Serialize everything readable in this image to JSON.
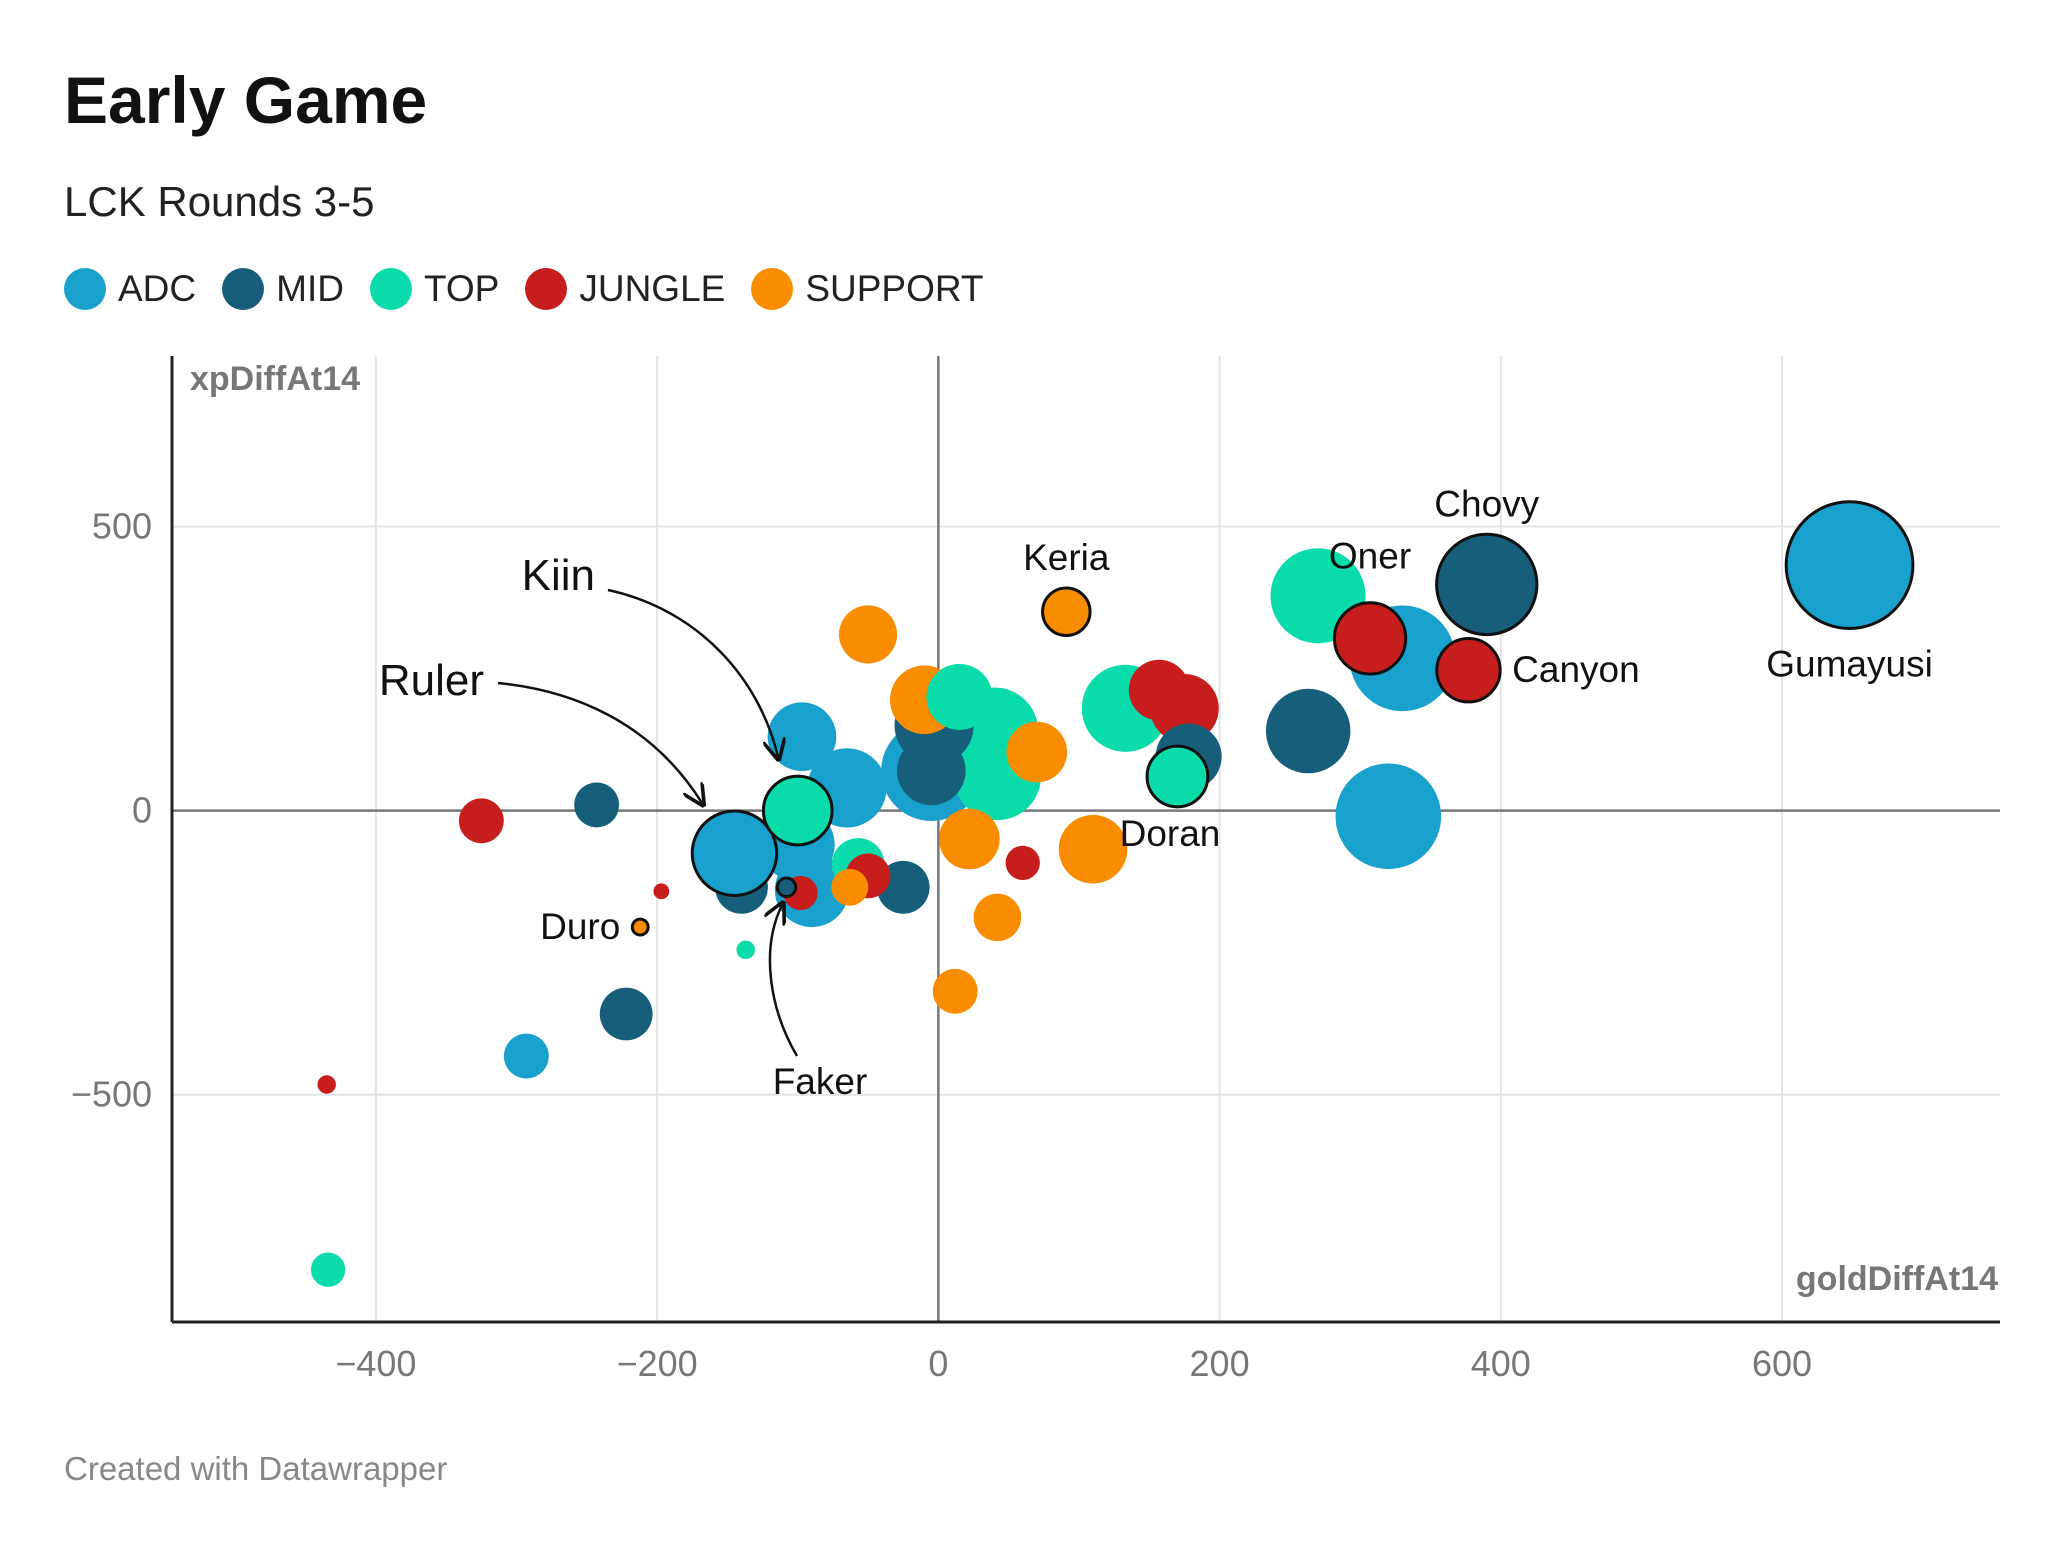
{
  "header": {
    "title": "Early Game",
    "subtitle": "LCK Rounds 3-5"
  },
  "legend": [
    {
      "label": "ADC",
      "color": "#18a1cd"
    },
    {
      "label": "MID",
      "color": "#175e7a"
    },
    {
      "label": "TOP",
      "color": "#09dcaa"
    },
    {
      "label": "JUNGLE",
      "color": "#c71e1d"
    },
    {
      "label": "SUPPORT",
      "color": "#fa8c00"
    }
  ],
  "footer": {
    "credit": "Created with Datawrapper"
  },
  "chart_data": {
    "type": "scatter",
    "xlabel": "goldDiffAt14",
    "ylabel": "xpDiffAt14",
    "xlim": [
      -545,
      755
    ],
    "ylim": [
      -900,
      800
    ],
    "xticks": [
      -400,
      -200,
      0,
      200,
      400,
      600
    ],
    "yticks": [
      500,
      0,
      -500
    ],
    "xtick_labels": [
      "−400",
      "−200",
      "0",
      "200",
      "400",
      "600"
    ],
    "ytick_labels": [
      "500",
      "0",
      "−500"
    ],
    "grid": true,
    "series": [
      {
        "name": "ADC",
        "color": "#18a1cd",
        "points": [
          {
            "x": 648,
            "y": 432,
            "size": 48,
            "label": "Gumayusi",
            "outline": true
          },
          {
            "x": 330,
            "y": 268,
            "size": 40
          },
          {
            "x": 320,
            "y": -10,
            "size": 40
          },
          {
            "x": -5,
            "y": 70,
            "size": 38
          },
          {
            "x": -65,
            "y": 40,
            "size": 30
          },
          {
            "x": -145,
            "y": -75,
            "size": 32,
            "label": "Ruler",
            "outline": true
          },
          {
            "x": -100,
            "y": -60,
            "size": 28
          },
          {
            "x": -90,
            "y": -140,
            "size": 28
          },
          {
            "x": -97,
            "y": 130,
            "size": 26
          },
          {
            "x": -293,
            "y": -432,
            "size": 17
          }
        ]
      },
      {
        "name": "MID",
        "color": "#175e7a",
        "points": [
          {
            "x": 390,
            "y": 398,
            "size": 38,
            "label": "Chovy",
            "outline": true
          },
          {
            "x": 263,
            "y": 140,
            "size": 32
          },
          {
            "x": 178,
            "y": 95,
            "size": 25
          },
          {
            "x": -3,
            "y": 150,
            "size": 30
          },
          {
            "x": -5,
            "y": 70,
            "size": 26
          },
          {
            "x": -25,
            "y": -135,
            "size": 20
          },
          {
            "x": -140,
            "y": -135,
            "size": 20
          },
          {
            "x": -108,
            "y": -135,
            "size": 7,
            "label": "Faker",
            "outline": true
          },
          {
            "x": -243,
            "y": 10,
            "size": 17
          },
          {
            "x": -222,
            "y": -358,
            "size": 20
          }
        ]
      },
      {
        "name": "TOP",
        "color": "#09dcaa",
        "points": [
          {
            "x": 270,
            "y": 378,
            "size": 36
          },
          {
            "x": 133,
            "y": 180,
            "size": 33
          },
          {
            "x": 40,
            "y": 140,
            "size": 33
          },
          {
            "x": 42,
            "y": 60,
            "size": 33
          },
          {
            "x": 15,
            "y": 200,
            "size": 25
          },
          {
            "x": 170,
            "y": 60,
            "size": 23,
            "label": "Doran",
            "outline": true
          },
          {
            "x": -100,
            "y": 0,
            "size": 26,
            "label": "Kiin",
            "outline": true
          },
          {
            "x": -57,
            "y": -95,
            "size": 20
          },
          {
            "x": -137,
            "y": -245,
            "size": 7
          },
          {
            "x": -434,
            "y": -808,
            "size": 13
          }
        ]
      },
      {
        "name": "JUNGLE",
        "color": "#c71e1d",
        "points": [
          {
            "x": 307,
            "y": 303,
            "size": 27,
            "label": "Oner",
            "outline": true
          },
          {
            "x": 377,
            "y": 247,
            "size": 24,
            "label": "Canyon",
            "outline": true
          },
          {
            "x": 157,
            "y": 212,
            "size": 23
          },
          {
            "x": 175,
            "y": 180,
            "size": 26
          },
          {
            "x": -50,
            "y": -115,
            "size": 17
          },
          {
            "x": 60,
            "y": -92,
            "size": 13
          },
          {
            "x": -98,
            "y": -145,
            "size": 13
          },
          {
            "x": -325,
            "y": -18,
            "size": 17
          },
          {
            "x": -197,
            "y": -142,
            "size": 6
          },
          {
            "x": -435,
            "y": -482,
            "size": 7
          }
        ]
      },
      {
        "name": "SUPPORT",
        "color": "#fa8c00",
        "points": [
          {
            "x": 91,
            "y": 350,
            "size": 18,
            "label": "Keria",
            "outline": true
          },
          {
            "x": -50,
            "y": 310,
            "size": 22
          },
          {
            "x": -10,
            "y": 195,
            "size": 26
          },
          {
            "x": 70,
            "y": 103,
            "size": 23
          },
          {
            "x": 110,
            "y": -68,
            "size": 26
          },
          {
            "x": 22,
            "y": -50,
            "size": 23
          },
          {
            "x": 42,
            "y": -188,
            "size": 18
          },
          {
            "x": 12,
            "y": -318,
            "size": 17
          },
          {
            "x": -63,
            "y": -135,
            "size": 14
          },
          {
            "x": -212,
            "y": -205,
            "size": 6,
            "label": "Duro",
            "outline": true
          }
        ]
      }
    ]
  }
}
